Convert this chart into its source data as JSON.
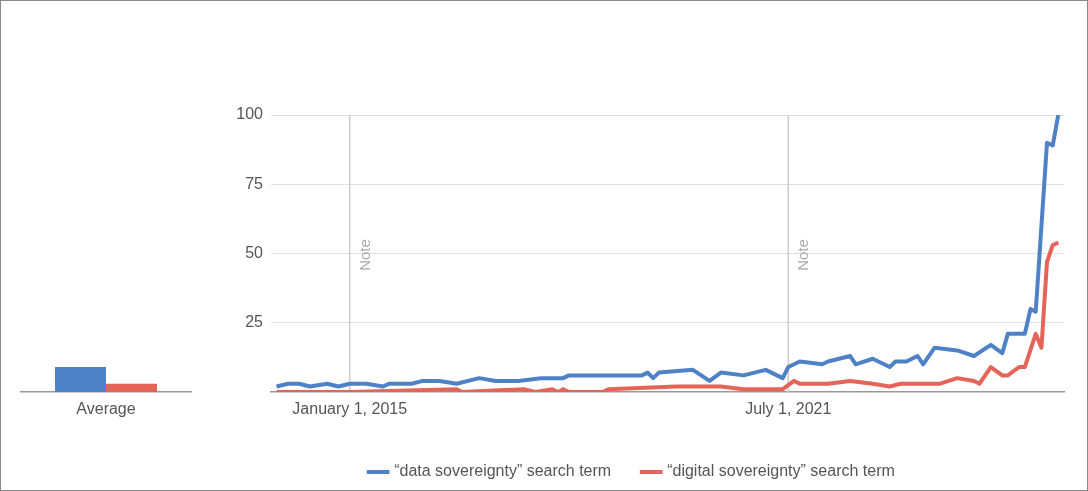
{
  "chart_data": [
    {
      "type": "bar",
      "categories": [
        "Average"
      ],
      "series": [
        {
          "color": "#4f81c7",
          "values": [
            9
          ]
        },
        {
          "color": "#e46459",
          "values": [
            3
          ]
        }
      ],
      "ylim": [
        0,
        100
      ],
      "tick_labels": "x",
      "grid": false,
      "legend": false
    },
    {
      "type": "line",
      "xlim": [
        "2013-11",
        "2025-08"
      ],
      "xticks": [
        {
          "value": "2015-01-01",
          "label": "January 1, 2015"
        },
        {
          "value": "2021-07-01",
          "label": "July 1, 2021"
        }
      ],
      "ylim": [
        0,
        100
      ],
      "yticks": [
        25,
        50,
        75,
        100
      ],
      "grid": "y",
      "legend": "bottom",
      "marker": "none",
      "line_style": "solid",
      "ref_lines": [
        {
          "axis": "x",
          "value": "2015-01-01",
          "label": "Note",
          "color": "#cccccc"
        },
        {
          "axis": "x",
          "value": "2021-07-01",
          "label": "Note",
          "color": "#cccccc"
        }
      ],
      "series": [
        {
          "name": "“data sovereignty” search term",
          "color": "#4f81c7",
          "x": [
            "2013-12",
            "2014-02",
            "2014-04",
            "2014-06",
            "2014-09",
            "2014-11",
            "2015-01",
            "2015-04",
            "2015-07",
            "2015-08",
            "2015-12",
            "2016-02",
            "2016-05",
            "2016-08",
            "2016-12",
            "2017-03",
            "2017-07",
            "2017-11",
            "2018-03",
            "2018-04",
            "2018-10",
            "2019-05",
            "2019-06",
            "2019-07",
            "2019-08",
            "2020-02",
            "2020-05",
            "2020-07",
            "2020-11",
            "2021-03",
            "2021-06",
            "2021-07",
            "2021-09",
            "2022-01",
            "2022-02",
            "2022-06",
            "2022-07",
            "2022-10",
            "2023-01",
            "2023-02",
            "2023-04",
            "2023-06",
            "2023-07",
            "2023-09",
            "2024-01",
            "2024-04",
            "2024-07",
            "2024-09",
            "2024-10",
            "2025-01",
            "2025-02",
            "2025-03",
            "2025-05",
            "2025-06",
            "2025-07"
          ],
          "values": [
            2,
            3,
            3,
            2,
            3,
            2,
            3,
            3,
            2,
            3,
            3,
            4,
            4,
            3,
            5,
            4,
            4,
            5,
            5,
            6,
            6,
            6,
            7,
            5,
            7,
            8,
            4,
            7,
            6,
            8,
            5,
            9,
            11,
            10,
            11,
            13,
            10,
            12,
            9,
            11,
            11,
            13,
            10,
            16,
            15,
            13,
            17,
            14,
            21,
            21,
            30,
            29,
            90,
            89,
            100
          ]
        },
        {
          "name": "“digital sovereignty” search term",
          "color": "#e46459",
          "x": [
            "2013-12",
            "2015-01",
            "2016-08",
            "2016-09",
            "2017-08",
            "2017-10",
            "2018-01",
            "2018-02",
            "2018-03",
            "2018-04",
            "2018-10",
            "2018-11",
            "2019-11",
            "2020-07",
            "2020-11",
            "2021-06",
            "2021-08",
            "2021-09",
            "2021-12",
            "2022-02",
            "2022-06",
            "2022-10",
            "2023-01",
            "2023-03",
            "2023-10",
            "2024-01",
            "2024-04",
            "2024-05",
            "2024-07",
            "2024-09",
            "2024-10",
            "2024-12",
            "2025-01",
            "2025-03",
            "2025-04",
            "2025-05",
            "2025-06",
            "2025-07"
          ],
          "values": [
            0,
            0,
            1,
            0,
            1,
            0,
            1,
            0,
            1,
            0,
            0,
            1,
            2,
            2,
            1,
            1,
            4,
            3,
            3,
            3,
            4,
            3,
            2,
            3,
            3,
            5,
            4,
            3,
            9,
            6,
            6,
            9,
            9,
            21,
            16,
            47,
            53,
            54
          ]
        }
      ]
    }
  ]
}
